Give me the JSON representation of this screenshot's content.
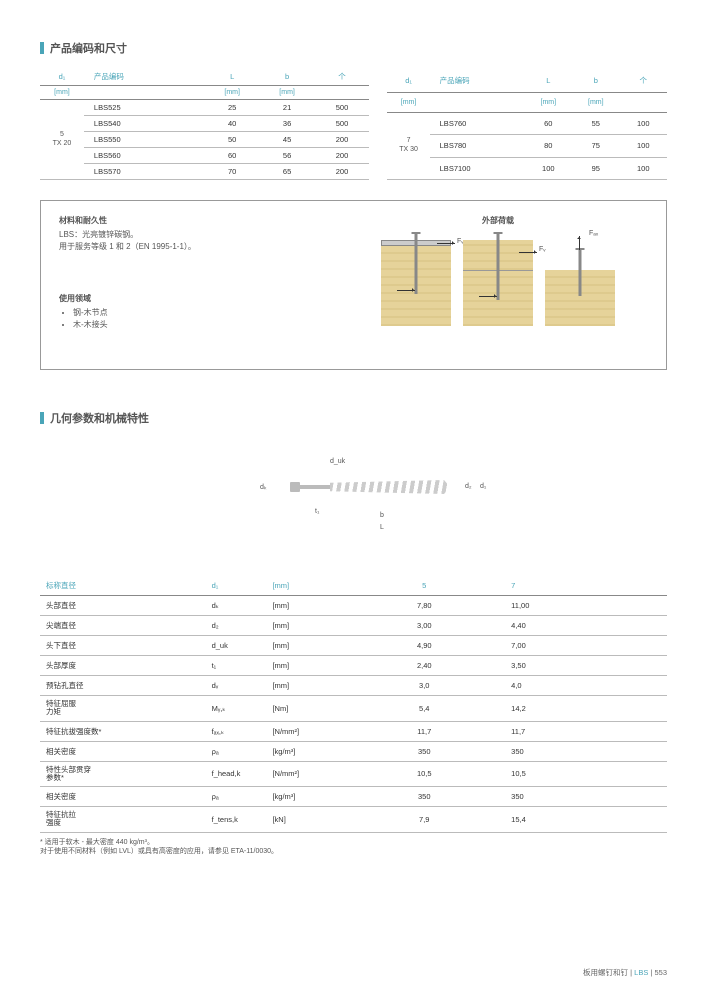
{
  "section1": {
    "title": "产品编码和尺寸"
  },
  "headers": {
    "d1": "d₁",
    "code": "产品编码",
    "L": "L",
    "b": "b",
    "pkg": "个",
    "mm": "[mm]"
  },
  "table1": {
    "group": "5\nTX 20",
    "rows": [
      {
        "code": "LBS525",
        "L": "25",
        "b": "21",
        "pkg": "500"
      },
      {
        "code": "LBS540",
        "L": "40",
        "b": "36",
        "pkg": "500"
      },
      {
        "code": "LBS550",
        "L": "50",
        "b": "45",
        "pkg": "200"
      },
      {
        "code": "LBS560",
        "L": "60",
        "b": "56",
        "pkg": "200"
      },
      {
        "code": "LBS570",
        "L": "70",
        "b": "65",
        "pkg": "200"
      }
    ]
  },
  "table2": {
    "group": "7\nTX 30",
    "rows": [
      {
        "code": "LBS760",
        "L": "60",
        "b": "55",
        "pkg": "100"
      },
      {
        "code": "LBS780",
        "L": "80",
        "b": "75",
        "pkg": "100"
      },
      {
        "code": "LBS7100",
        "L": "100",
        "b": "95",
        "pkg": "100"
      }
    ]
  },
  "info": {
    "mat_h": "材料和耐久性",
    "mat_l1": "LBS：光亮镀锌碳钢。",
    "mat_l2": "用于服务等级 1 和 2（EN 1995-1-1）。",
    "use_h": "使用领域",
    "use_1": "钢-木节点",
    "use_2": "木-木接头",
    "ext_h": "外部荷载",
    "fv": "Fᵥ",
    "fax": "Fₐₓ"
  },
  "section2": {
    "title": "几何参数和机械特性"
  },
  "dims": {
    "dk": "dₖ",
    "duk": "d_uk",
    "t1": "t₁",
    "b": "b",
    "L": "L",
    "d2": "d₂",
    "d1": "d₁"
  },
  "spec": {
    "h_name": "标称直径",
    "h_sym": "d₁",
    "h_unit": "[mm]",
    "h_v5": "5",
    "h_v7": "7",
    "rows": [
      {
        "name": "头部直径",
        "sym": "dₖ",
        "unit": "[mm]",
        "v5": "7,80",
        "v7": "11,00"
      },
      {
        "name": "尖端直径",
        "sym": "d₂",
        "unit": "[mm]",
        "v5": "3,00",
        "v7": "4,40"
      },
      {
        "name": "头下直径",
        "sym": "d_uk",
        "unit": "[mm]",
        "v5": "4,90",
        "v7": "7,00"
      },
      {
        "name": "头部厚度",
        "sym": "t₁",
        "unit": "[mm]",
        "v5": "2,40",
        "v7": "3,50"
      },
      {
        "name": "预钻孔直径",
        "sym": "dᵥ",
        "unit": "[mm]",
        "v5": "3,0",
        "v7": "4,0"
      },
      {
        "name": "特征屈服\n力矩",
        "sym": "Mᵧ,ₖ",
        "unit": "[Nm]",
        "v5": "5,4",
        "v7": "14,2"
      },
      {
        "name": "特征抗拔强度数*",
        "sym": "fₐₓ,ₖ",
        "unit": "[N/mm²]",
        "v5": "11,7",
        "v7": "11,7"
      },
      {
        "name": "相关密度",
        "sym": "ρₐ",
        "unit": "[kg/m³]",
        "v5": "350",
        "v7": "350"
      },
      {
        "name": "特性头部贯穿\n参数*",
        "sym": "f_head,k",
        "unit": "[N/mm²]",
        "v5": "10,5",
        "v7": "10,5"
      },
      {
        "name": "相关密度",
        "sym": "ρₐ",
        "unit": "[kg/m³]",
        "v5": "350",
        "v7": "350"
      },
      {
        "name": "特征抗拉\n强度",
        "sym": "f_tens,k",
        "unit": "[kN]",
        "v5": "7,9",
        "v7": "15,4"
      }
    ],
    "note1": "* 适用于软木 - 最大密度 440 kg/m³。",
    "note2": "对于使用不同材料（例如 LVL）或具有高密度的应用，请参见 ETA-11/0030。"
  },
  "footer": {
    "text": "板用螺钉和钉 | ",
    "prod": "LBS",
    "page": " | 553"
  }
}
